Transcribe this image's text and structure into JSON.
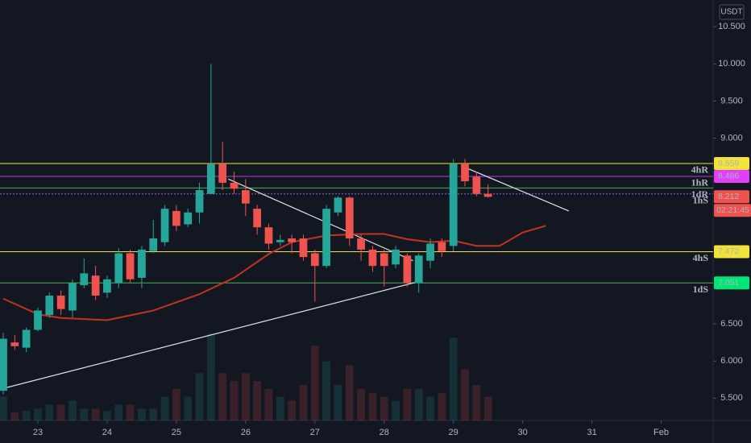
{
  "chart_data": {
    "type": "candlestick",
    "currency": "USDT",
    "up_color": "#26a69a",
    "down_color": "#ef5350",
    "xlim": [
      -0.28,
      61.5
    ],
    "xticks": [
      {
        "value": 3,
        "label": "23"
      },
      {
        "value": 9,
        "label": "24"
      },
      {
        "value": 15,
        "label": "25"
      },
      {
        "value": 21,
        "label": "26"
      },
      {
        "value": 27,
        "label": "27"
      },
      {
        "value": 33,
        "label": "28"
      },
      {
        "value": 39,
        "label": "29"
      },
      {
        "value": 45,
        "label": "30"
      },
      {
        "value": 51,
        "label": "31"
      },
      {
        "value": 57,
        "label": "Feb"
      }
    ],
    "ylim": [
      5.2,
      10.86
    ],
    "yticks": [
      {
        "value": 5.5,
        "label": "5.500"
      },
      {
        "value": 6,
        "label": "6.000"
      },
      {
        "value": 6.5,
        "label": "6.500"
      },
      {
        "value": 9,
        "label": "9.000"
      },
      {
        "value": 9.5,
        "label": "9.500"
      },
      {
        "value": 10,
        "label": "10.000"
      },
      {
        "value": 10.5,
        "label": "10.500"
      }
    ],
    "candles": [
      {
        "open": 5.6,
        "high": 6.38,
        "low": 5.55,
        "close": 6.3
      },
      {
        "open": 6.25,
        "high": 6.35,
        "low": 6.15,
        "close": 6.2
      },
      {
        "open": 6.18,
        "high": 6.45,
        "low": 6.12,
        "close": 6.42
      },
      {
        "open": 6.42,
        "high": 6.72,
        "low": 6.4,
        "close": 6.68
      },
      {
        "open": 6.62,
        "high": 6.92,
        "low": 6.58,
        "close": 6.88
      },
      {
        "open": 6.88,
        "high": 6.95,
        "low": 6.62,
        "close": 6.7
      },
      {
        "open": 6.68,
        "high": 7.1,
        "low": 6.58,
        "close": 7.05
      },
      {
        "open": 7.02,
        "high": 7.38,
        "low": 6.98,
        "close": 7.18
      },
      {
        "open": 7.15,
        "high": 7.28,
        "low": 6.82,
        "close": 6.88
      },
      {
        "open": 6.92,
        "high": 7.15,
        "low": 6.85,
        "close": 7.1
      },
      {
        "open": 7.05,
        "high": 7.52,
        "low": 6.98,
        "close": 7.45
      },
      {
        "open": 7.45,
        "high": 7.5,
        "low": 7.05,
        "close": 7.1
      },
      {
        "open": 7.12,
        "high": 7.55,
        "low": 6.98,
        "close": 7.5
      },
      {
        "open": 7.48,
        "high": 7.9,
        "low": 7.45,
        "close": 7.65
      },
      {
        "open": 7.6,
        "high": 8.1,
        "low": 7.55,
        "close": 8.05
      },
      {
        "open": 8.02,
        "high": 8.1,
        "low": 7.75,
        "close": 7.82
      },
      {
        "open": 7.84,
        "high": 8.05,
        "low": 7.8,
        "close": 8.0
      },
      {
        "open": 8.0,
        "high": 8.4,
        "low": 7.85,
        "close": 8.3
      },
      {
        "open": 8.25,
        "high": 10.0,
        "low": 8.25,
        "close": 8.65
      },
      {
        "open": 8.65,
        "high": 8.95,
        "low": 8.3,
        "close": 8.4
      },
      {
        "open": 8.4,
        "high": 8.55,
        "low": 8.25,
        "close": 8.32
      },
      {
        "open": 8.3,
        "high": 8.45,
        "low": 7.95,
        "close": 8.12
      },
      {
        "open": 8.05,
        "high": 8.1,
        "low": 7.7,
        "close": 7.8
      },
      {
        "open": 7.8,
        "high": 7.85,
        "low": 7.5,
        "close": 7.58
      },
      {
        "open": 7.6,
        "high": 7.7,
        "low": 7.55,
        "close": 7.63
      },
      {
        "open": 7.65,
        "high": 7.7,
        "low": 7.45,
        "close": 7.6
      },
      {
        "open": 7.65,
        "high": 7.7,
        "low": 7.35,
        "close": 7.4
      },
      {
        "open": 7.45,
        "high": 7.5,
        "low": 6.8,
        "close": 7.28
      },
      {
        "open": 7.28,
        "high": 8.1,
        "low": 7.25,
        "close": 8.05
      },
      {
        "open": 8.0,
        "high": 8.22,
        "low": 7.95,
        "close": 8.2
      },
      {
        "open": 8.2,
        "high": 8.22,
        "low": 7.55,
        "close": 7.65
      },
      {
        "open": 7.65,
        "high": 7.7,
        "low": 7.35,
        "close": 7.5
      },
      {
        "open": 7.5,
        "high": 7.55,
        "low": 7.2,
        "close": 7.28
      },
      {
        "open": 7.45,
        "high": 7.5,
        "low": 7.0,
        "close": 7.28
      },
      {
        "open": 7.3,
        "high": 7.55,
        "low": 7.25,
        "close": 7.5
      },
      {
        "open": 7.42,
        "high": 7.45,
        "low": 7.0,
        "close": 7.05
      },
      {
        "open": 7.05,
        "high": 7.45,
        "low": 6.92,
        "close": 7.42
      },
      {
        "open": 7.35,
        "high": 7.65,
        "low": 7.25,
        "close": 7.58
      },
      {
        "open": 7.6,
        "high": 7.65,
        "low": 7.4,
        "close": 7.48
      },
      {
        "open": 7.55,
        "high": 8.72,
        "low": 7.48,
        "close": 8.65
      },
      {
        "open": 8.65,
        "high": 8.72,
        "low": 8.35,
        "close": 8.42
      },
      {
        "open": 8.48,
        "high": 8.55,
        "low": 8.22,
        "close": 8.25
      },
      {
        "open": 8.25,
        "high": 8.38,
        "low": 8.2,
        "close": 8.21
      }
    ],
    "volume": [
      30,
      10,
      12,
      15,
      20,
      20,
      25,
      15,
      15,
      12,
      20,
      20,
      15,
      15,
      30,
      40,
      30,
      60,
      110,
      60,
      50,
      60,
      50,
      40,
      30,
      25,
      45,
      95,
      75,
      45,
      70,
      40,
      35,
      30,
      25,
      40,
      40,
      30,
      35,
      105,
      65,
      45,
      30
    ],
    "volume_lim": [
      0,
      160
    ],
    "ma": {
      "color": "#c1331f",
      "x": [
        0,
        3,
        5,
        9,
        13,
        17,
        20,
        23,
        25,
        28,
        31,
        33,
        35,
        37,
        39,
        41,
        43,
        45,
        47
      ],
      "values": [
        6.84,
        6.63,
        6.58,
        6.55,
        6.68,
        6.9,
        7.12,
        7.44,
        7.6,
        7.69,
        7.71,
        7.71,
        7.64,
        7.6,
        7.62,
        7.55,
        7.55,
        7.73,
        7.82
      ]
    },
    "trendlines": [
      {
        "x": [
          -0.28,
          36
        ],
        "values": [
          5.62,
          7.07
        ]
      },
      {
        "x": [
          19.5,
          35.5
        ],
        "values": [
          8.45,
          7.35
        ]
      },
      {
        "x": [
          39.8,
          49
        ],
        "values": [
          8.62,
          8.02
        ]
      }
    ],
    "levels": [
      {
        "label": "4hR",
        "value": 8.659,
        "color": "#f2e33a"
      },
      {
        "label": "1hR",
        "value": 8.486,
        "color": "#b13fd0"
      },
      {
        "label": "1dR",
        "value": 8.33,
        "color": "#4caf50"
      },
      {
        "label": "1hS",
        "value": 8.25,
        "color": "#9c5fc8"
      },
      {
        "label": "4hS",
        "value": 7.472,
        "color": "#f2e33a"
      },
      {
        "label": "1dS",
        "value": 7.051,
        "color": "#4caf50"
      }
    ],
    "price_tags": [
      {
        "value": 8.659,
        "color": "#f2e33a"
      },
      {
        "value": 8.486,
        "color": "#e040fb"
      },
      {
        "value": 8.212,
        "color": "#ef5350"
      },
      {
        "value": 7.472,
        "color": "#f2e33a"
      },
      {
        "value": 7.051,
        "color": "#00e676"
      }
    ],
    "countdown": "02:21:45"
  }
}
